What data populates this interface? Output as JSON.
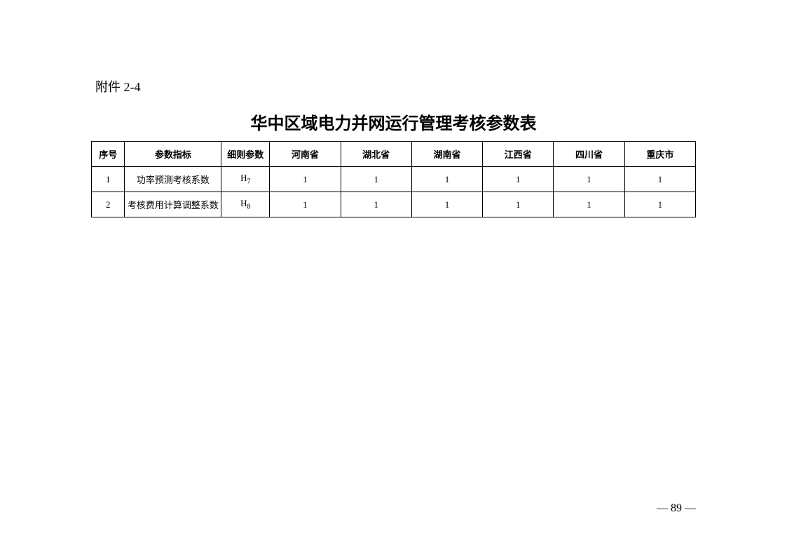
{
  "attachment_label": "附件 2-4",
  "main_title": "华中区域电力并网运行管理考核参数表",
  "page_number": "— 89 —",
  "table": {
    "columns": [
      {
        "key": "seq",
        "label": "序号"
      },
      {
        "key": "indicator",
        "label": "参数指标"
      },
      {
        "key": "rule_param",
        "label": "细则参数"
      },
      {
        "key": "henan",
        "label": "河南省"
      },
      {
        "key": "hubei",
        "label": "湖北省"
      },
      {
        "key": "hunan",
        "label": "湖南省"
      },
      {
        "key": "jiangxi",
        "label": "江西省"
      },
      {
        "key": "sichuan",
        "label": "四川省"
      },
      {
        "key": "chongqing",
        "label": "重庆市"
      }
    ],
    "rows": [
      {
        "seq": "1",
        "indicator": "功率预测考核系数",
        "rule_param_base": "H",
        "rule_param_sub": "7",
        "henan": "1",
        "hubei": "1",
        "hunan": "1",
        "jiangxi": "1",
        "sichuan": "1",
        "chongqing": "1"
      },
      {
        "seq": "2",
        "indicator": "考核费用计算调整系数",
        "rule_param_base": "H",
        "rule_param_sub": "8",
        "henan": "1",
        "hubei": "1",
        "hunan": "1",
        "jiangxi": "1",
        "sichuan": "1",
        "chongqing": "1"
      }
    ]
  }
}
